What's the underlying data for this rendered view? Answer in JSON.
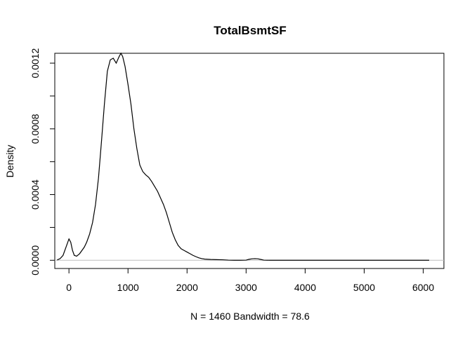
{
  "chart_data": {
    "type": "line",
    "title": "TotalBsmtSF",
    "xlabel": "N = 1460   Bandwidth = 78.6",
    "ylabel": "Density",
    "xlim": [
      -240,
      6350
    ],
    "ylim": [
      -5e-05,
      0.00126
    ],
    "x_ticks": [
      0,
      1000,
      2000,
      3000,
      4000,
      5000,
      6000
    ],
    "x_tick_labels": [
      "0",
      "1000",
      "2000",
      "3000",
      "4000",
      "5000",
      "6000"
    ],
    "y_ticks": [
      0.0,
      0.0004,
      0.0008,
      0.0012
    ],
    "y_tick_labels": [
      "0.0000",
      "0.0004",
      "0.0008",
      "0.0012"
    ],
    "y_minor_ticks": [
      0.0002,
      0.0006,
      0.001
    ],
    "grid": false,
    "legend": "none",
    "line_color": "#000000",
    "baseline_color": "#bebebe",
    "series": [
      {
        "x": [
          -200,
          -150,
          -100,
          -50,
          0,
          30,
          60,
          90,
          130,
          180,
          220,
          260,
          300,
          350,
          400,
          450,
          500,
          550,
          600,
          650,
          700,
          750,
          800,
          850,
          880,
          910,
          950,
          1000,
          1050,
          1100,
          1150,
          1200,
          1250,
          1300,
          1350,
          1400,
          1450,
          1500,
          1550,
          1600,
          1650,
          1700,
          1750,
          1800,
          1850,
          1900,
          1950,
          2000,
          2050,
          2100,
          2150,
          2200,
          2250,
          2300,
          2400,
          2500,
          2600,
          2700,
          2800,
          2900,
          3000,
          3050,
          3100,
          3150,
          3200,
          3250,
          3300,
          3400,
          3600,
          3800,
          4000,
          4500,
          5000,
          5500,
          6000,
          6100
        ],
        "y": [
          2e-06,
          1e-05,
          3e-05,
          8e-05,
          0.00013,
          0.00011,
          6e-05,
          3e-05,
          2.5e-05,
          4e-05,
          6e-05,
          8e-05,
          0.00011,
          0.00016,
          0.00023,
          0.00034,
          0.0005,
          0.00072,
          0.00095,
          0.00115,
          0.00122,
          0.00123,
          0.0012,
          0.00124,
          0.00126,
          0.00124,
          0.00118,
          0.00107,
          0.00095,
          0.0008,
          0.00068,
          0.00058,
          0.00054,
          0.00052,
          0.000505,
          0.00048,
          0.00045,
          0.00042,
          0.00038,
          0.00034,
          0.00029,
          0.00023,
          0.00017,
          0.000125,
          9e-05,
          7e-05,
          6e-05,
          5e-05,
          4e-05,
          3e-05,
          2.2e-05,
          1.5e-05,
          1e-05,
          7e-06,
          5e-06,
          4e-06,
          3e-06,
          1e-06,
          0.0,
          0.0,
          1e-06,
          6e-06,
          9e-06,
          1e-05,
          9e-06,
          5e-06,
          1e-06,
          0.0,
          0.0,
          0.0,
          0.0,
          0.0,
          0.0,
          0.0,
          0.0,
          0.0
        ]
      }
    ]
  }
}
